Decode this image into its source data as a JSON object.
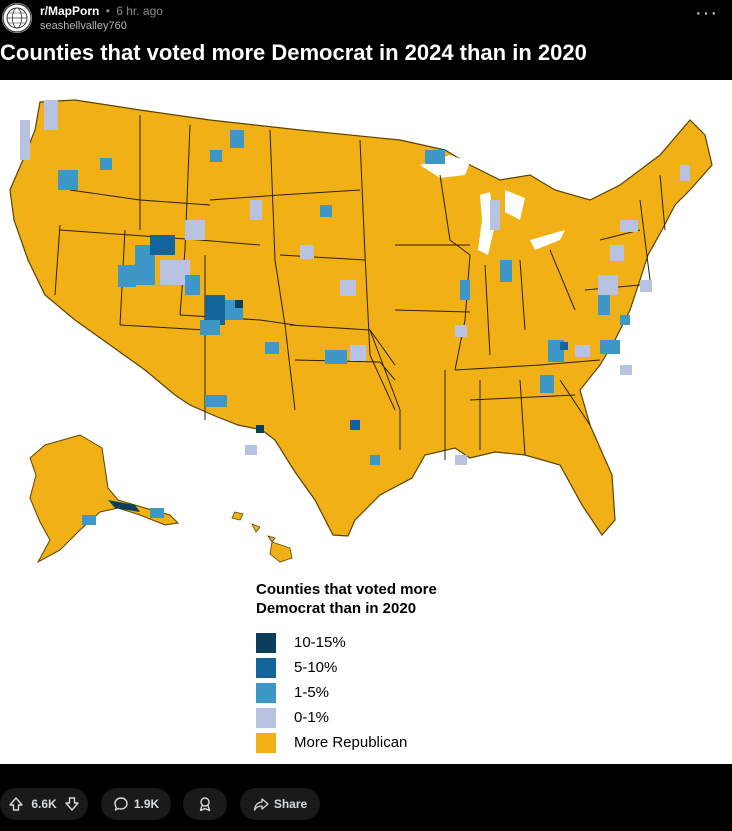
{
  "post": {
    "subreddit": "r/MapPorn",
    "separator": "•",
    "time_ago": "6 hr. ago",
    "username": "seashellvalley760",
    "more_label": "···",
    "title": "Counties that voted more Democrat in 2024 than in 2020"
  },
  "map": {
    "legend_title_line1": "Counties that voted more",
    "legend_title_line2": "Democrat than in 2020",
    "legend_items": [
      {
        "label": "10-15%",
        "color": "#0b3d5c"
      },
      {
        "label": "5-10%",
        "color": "#13649a"
      },
      {
        "label": "1-5%",
        "color": "#3d97c7"
      },
      {
        "label": "0-1%",
        "color": "#b7c3e0"
      },
      {
        "label": "More Republican",
        "color": "#f0b016"
      }
    ],
    "land_color": "#f0b016",
    "border_color": "#3a2a00"
  },
  "actions": {
    "upvotes": "6.6K",
    "comments": "1.9K",
    "share_label": "Share"
  }
}
